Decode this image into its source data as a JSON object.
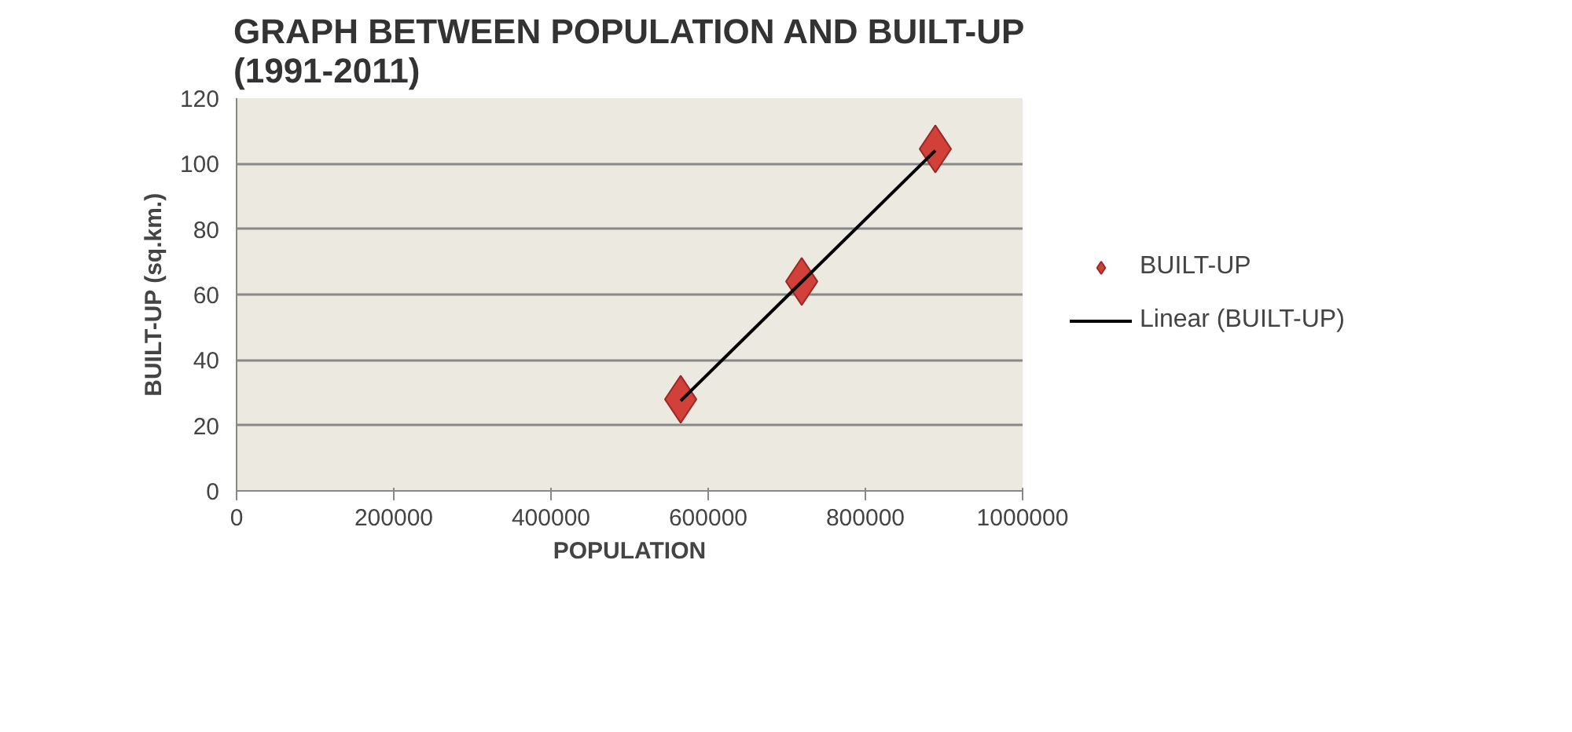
{
  "chart_data": {
    "type": "scatter",
    "title": "GRAPH BETWEEN POPULATION AND BUILT-UP\n(1991-2011)",
    "xlabel": "POPULATION",
    "ylabel": "BUILT-UP (sq.km.)",
    "series": [
      {
        "name": "BUILT-UP",
        "color": "#d2403a",
        "x": [
          565000,
          719000,
          889000
        ],
        "values": [
          28,
          64,
          104.5
        ],
        "marker": "diamond"
      },
      {
        "name": "Linear (BUILT-UP)",
        "type": "line",
        "color": "#000000",
        "x": [
          565000,
          889000
        ],
        "values": [
          27.5,
          104
        ],
        "line_style": "solid"
      }
    ],
    "xlim": [
      0,
      1000000
    ],
    "xticks": [
      0,
      200000,
      400000,
      600000,
      800000,
      1000000
    ],
    "ylim": [
      0,
      120
    ],
    "yticks": [
      0,
      20,
      40,
      60,
      80,
      100,
      120
    ],
    "grid": "y",
    "legend": "right"
  }
}
